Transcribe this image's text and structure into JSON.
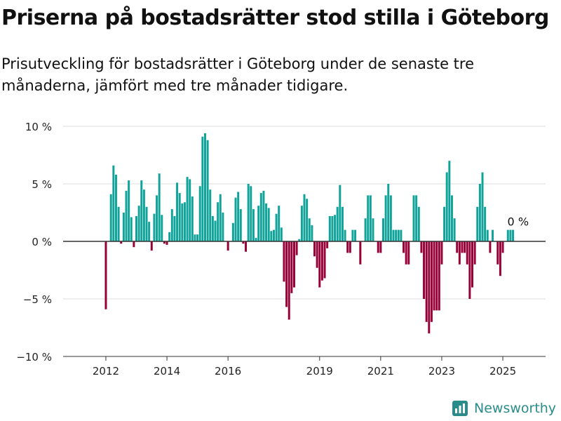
{
  "title": "Priserna på bostadsrätter stod stilla i Göteborg",
  "subtitle": "Prisutveckling för bostadsrätter i Göteborg under de senaste tre månaderna, jämfört med tre månader tidigare.",
  "brand": {
    "name": "Newsworthy",
    "icon": "newsworthy-logo-icon"
  },
  "colors": {
    "positive": "#0fa39a",
    "negative": "#960036",
    "grid": "#dddddd",
    "zero": "#333333",
    "text": "#222222",
    "brand": "#2a8c8a"
  },
  "chart_data": {
    "type": "bar",
    "xlabel": "",
    "ylabel": "",
    "ylim": [
      -10,
      10
    ],
    "xlim": [
      2010.6,
      2026.4
    ],
    "yticks": [
      {
        "value": 10,
        "label": "10 %"
      },
      {
        "value": 5,
        "label": "5 %"
      },
      {
        "value": 0,
        "label": "0 %"
      },
      {
        "value": -5,
        "label": "−5 %"
      },
      {
        "value": -10,
        "label": "−10 %"
      }
    ],
    "xticks": [
      {
        "value": 2012,
        "label": "2012"
      },
      {
        "value": 2014,
        "label": "2014"
      },
      {
        "value": 2016,
        "label": "2016"
      },
      {
        "value": 2019,
        "label": "2019"
      },
      {
        "value": 2021,
        "label": "2021"
      },
      {
        "value": 2023,
        "label": "2023"
      },
      {
        "value": 2025,
        "label": "2025"
      }
    ],
    "start": "2012-01",
    "values": [
      -5.9,
      0,
      4.1,
      6.6,
      5.8,
      3.0,
      -0.2,
      2.5,
      4.4,
      5.3,
      2.1,
      -0.5,
      2.2,
      3.1,
      5.3,
      4.5,
      3.0,
      1.7,
      -0.8,
      2.4,
      4.0,
      5.9,
      2.3,
      -0.2,
      -0.3,
      0.8,
      2.8,
      2.2,
      5.1,
      4.2,
      3.3,
      3.4,
      5.6,
      5.4,
      3.9,
      0.6,
      0.6,
      4.8,
      9.1,
      9.4,
      8.8,
      4.5,
      2.2,
      1.8,
      3.4,
      4.1,
      2.5,
      0,
      -0.8,
      0,
      1.6,
      3.8,
      4.3,
      2.8,
      -0.2,
      -0.9,
      5.0,
      4.8,
      2.8,
      0.3,
      3.1,
      4.2,
      4.4,
      3.3,
      2.9,
      0.9,
      1.0,
      2.4,
      3.1,
      1.2,
      -3.5,
      -5.7,
      -6.8,
      -4.5,
      -4.0,
      -1.2,
      0.2,
      3.1,
      4.1,
      3.7,
      2.0,
      1.4,
      -1.3,
      -2.3,
      -4.0,
      -3.4,
      -3.2,
      -0.6,
      2.2,
      2.2,
      2.3,
      3.0,
      4.9,
      3.0,
      1.0,
      -1.0,
      -1.0,
      1.0,
      1.0,
      0,
      -2.0,
      0,
      2.0,
      4.0,
      4.0,
      2.0,
      0,
      -1.0,
      -1.0,
      2.0,
      4.0,
      5.0,
      4.0,
      1.0,
      1.0,
      1.0,
      1.0,
      -1.0,
      -2.0,
      -2.0,
      0,
      4.0,
      4.0,
      3.0,
      -1.0,
      -5.0,
      -7.0,
      -8.0,
      -7.0,
      -6.0,
      -6.0,
      -6.0,
      -2.0,
      3.0,
      6.0,
      7.0,
      4.0,
      2.0,
      -1.0,
      -2.0,
      -1.0,
      -1.0,
      -2.0,
      -5.0,
      -4.0,
      -2.0,
      3.0,
      5.0,
      6.0,
      3.0,
      1.0,
      -1.0,
      1.0,
      0,
      -2.0,
      -3.0,
      -1.0,
      0,
      1.0,
      1.0,
      1.0
    ],
    "annotations": [
      {
        "label": "0 %"
      }
    ]
  }
}
